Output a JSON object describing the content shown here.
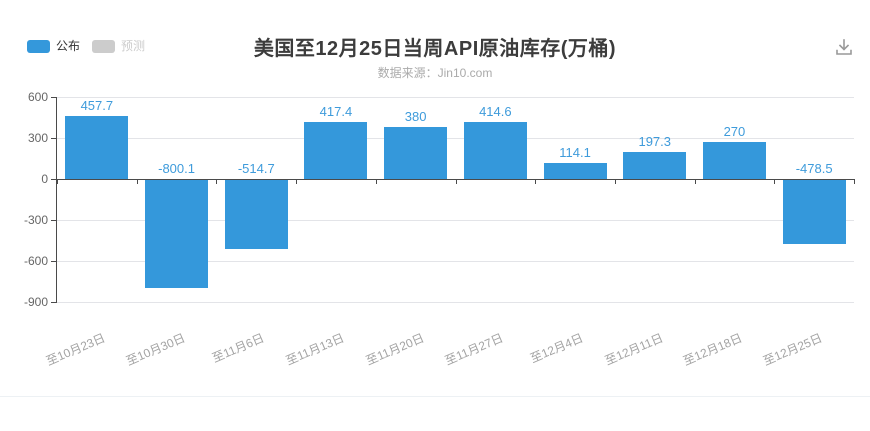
{
  "header": {
    "legend": [
      {
        "label": "公布",
        "color": "#3498db",
        "text_color": "#333333",
        "active": true
      },
      {
        "label": "预测",
        "color": "#cccccc",
        "text_color": "#cccccc",
        "active": false
      }
    ]
  },
  "chart_data": {
    "type": "bar",
    "title": "美国至12月25日当周API原油库存(万桶)",
    "subtitle": "数据来源：Jin10.com",
    "categories": [
      "至10月23日",
      "至10月30日",
      "至11月6日",
      "至11月13日",
      "至11月20日",
      "至11月27日",
      "至12月4日",
      "至12月11日",
      "至12月18日",
      "至12月25日"
    ],
    "series": [
      {
        "name": "公布",
        "values": [
          457.7,
          -800.1,
          -514.7,
          417.4,
          380,
          414.6,
          114.1,
          197.3,
          270,
          -478.5
        ]
      }
    ],
    "ylim": [
      -900,
      600
    ],
    "yticks": [
      600,
      300,
      0,
      -300,
      -600,
      -900
    ],
    "grid": true,
    "legend_position": "top-left",
    "bar_color": "#3498db",
    "value_label_color": "#3e9bdb",
    "xlabel": "",
    "ylabel": ""
  }
}
